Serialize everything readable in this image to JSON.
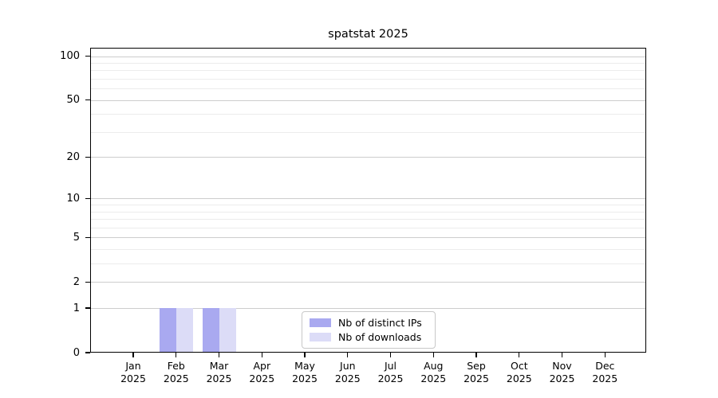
{
  "page": {
    "title": "spatstat 2025"
  },
  "legend": {
    "items": [
      {
        "label": "Nb of distinct IPs",
        "color": "#a9a9f0"
      },
      {
        "label": "Nb of downloads",
        "color": "#dcdcf7"
      }
    ]
  },
  "axes": {
    "y_tick_labels": [
      "100",
      "50",
      "20",
      "10",
      "5",
      "2",
      "1",
      "0"
    ],
    "x_tick_labels": [
      "Jan 2025",
      "Feb 2025",
      "Mar 2025",
      "Apr 2025",
      "May 2025",
      "Jun 2025",
      "Jul 2025",
      "Aug 2025",
      "Sep 2025",
      "Oct 2025",
      "Nov 2025",
      "Dec 2025"
    ]
  },
  "chart_data": {
    "type": "bar",
    "title": "spatstat 2025",
    "categories": [
      "Jan 2025",
      "Feb 2025",
      "Mar 2025",
      "Apr 2025",
      "May 2025",
      "Jun 2025",
      "Jul 2025",
      "Aug 2025",
      "Sep 2025",
      "Oct 2025",
      "Nov 2025",
      "Dec 2025"
    ],
    "series": [
      {
        "name": "Nb of distinct IPs",
        "color": "#a9a9f0",
        "values": [
          0,
          1,
          1,
          0,
          0,
          0,
          0,
          0,
          0,
          0,
          0,
          0
        ]
      },
      {
        "name": "Nb of downloads",
        "color": "#dcdcf7",
        "values": [
          0,
          1,
          1,
          0,
          0,
          0,
          0,
          0,
          0,
          0,
          0,
          0
        ]
      }
    ],
    "xlabel": "",
    "ylabel": "",
    "yscale": "log1p",
    "ylim": [
      0,
      114
    ],
    "yticks": [
      0,
      1,
      2,
      5,
      10,
      20,
      50,
      100
    ],
    "yticks_minor": [
      3,
      4,
      6,
      7,
      8,
      9,
      30,
      40,
      60,
      70,
      80,
      90
    ],
    "grid": "horizontal",
    "grid_major_color": "#cdcdcd",
    "grid_minor_color": "#ececec",
    "legend_position": "inside-bottom-center"
  }
}
